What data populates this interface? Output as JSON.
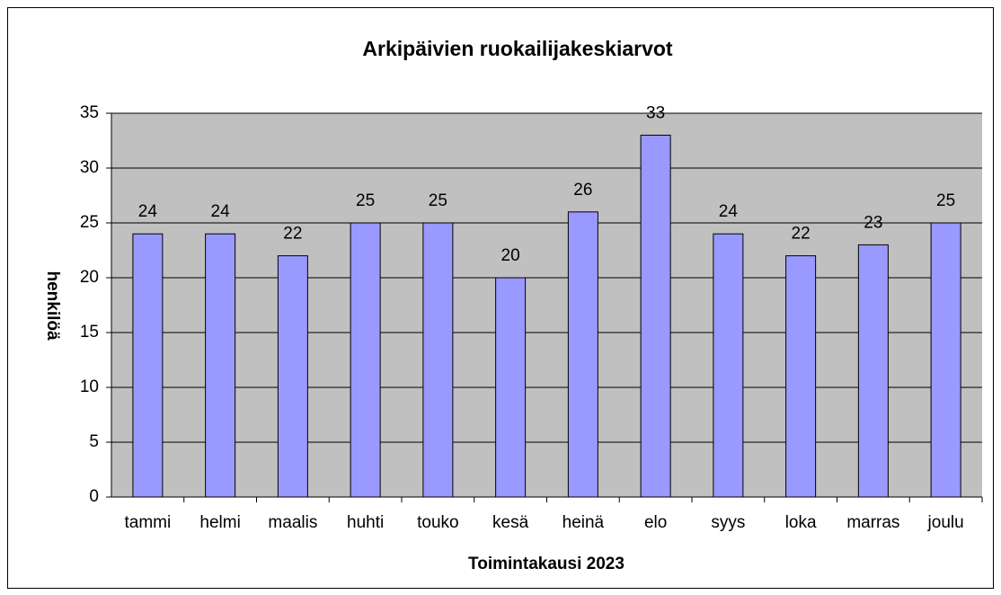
{
  "chart_data": {
    "type": "bar",
    "title": "Arkipäivien ruokailijakeskiarvot",
    "x_label": "Toimintakausi 2023",
    "y_label": "henkilöä",
    "categories": [
      "tammi",
      "helmi",
      "maalis",
      "huhti",
      "touko",
      "kesä",
      "heinä",
      "elo",
      "syys",
      "loka",
      "marras",
      "joulu"
    ],
    "values": [
      24,
      24,
      22,
      25,
      25,
      20,
      26,
      33,
      24,
      22,
      23,
      25
    ],
    "color": "#9999ff",
    "ylim": [
      0,
      35
    ],
    "yticks": [
      0,
      5,
      10,
      15,
      20,
      25,
      30,
      35
    ],
    "grid": true
  }
}
